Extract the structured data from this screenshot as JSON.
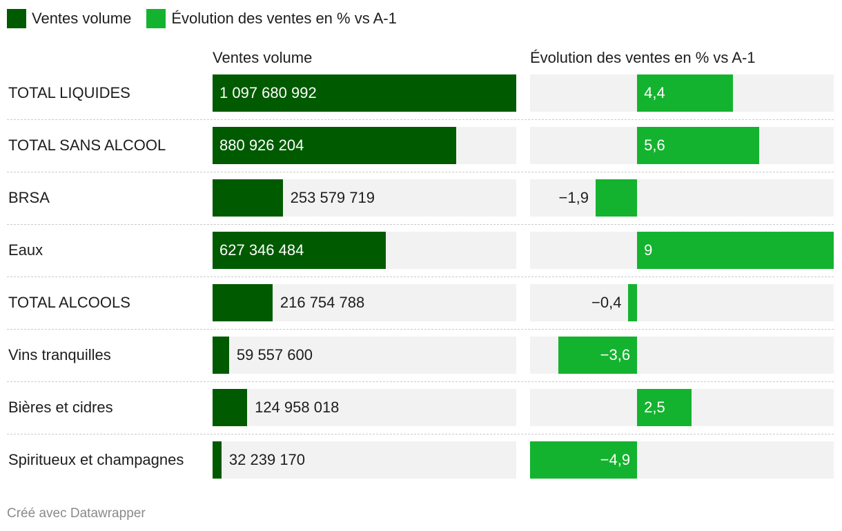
{
  "legend": [
    {
      "label": "Ventes volume",
      "color": "#005a00"
    },
    {
      "label": "Évolution des ventes en % vs A-1",
      "color": "#14b32f"
    }
  ],
  "headers": {
    "volume": "Ventes volume",
    "evolution": "Évolution des ventes en % vs A-1"
  },
  "footer": "Créé avec Datawrapper",
  "chart_data": {
    "type": "bar",
    "categories": [
      "TOTAL LIQUIDES",
      "TOTAL SANS ALCOOL",
      "BRSA",
      "Eaux",
      "TOTAL ALCOOLS",
      "Vins tranquilles",
      "Bières et cidres",
      "Spiritueux et champagnes"
    ],
    "series": [
      {
        "name": "Ventes volume",
        "color": "#005a00",
        "values": [
          1097680992,
          880926204,
          253579719,
          627346484,
          216754788,
          59557600,
          124958018,
          32239170
        ],
        "labels": [
          "1 097 680 992",
          "880 926 204",
          "253 579 719",
          "627 346 484",
          "216 754 788",
          "59 557 600",
          "124 958 018",
          "32 239 170"
        ],
        "xlim": [
          0,
          1097680992
        ]
      },
      {
        "name": "Évolution des ventes en % vs A-1",
        "color": "#14b32f",
        "values": [
          4.4,
          5.6,
          -1.9,
          9,
          -0.4,
          -3.6,
          2.5,
          -4.9
        ],
        "labels": [
          "4,4",
          "5,6",
          "−1,9",
          "9",
          "−0,4",
          "−3,6",
          "2,5",
          "−4,9"
        ],
        "xlim": [
          -4.9,
          9
        ]
      }
    ],
    "title": "",
    "xlabel": "",
    "ylabel": ""
  }
}
